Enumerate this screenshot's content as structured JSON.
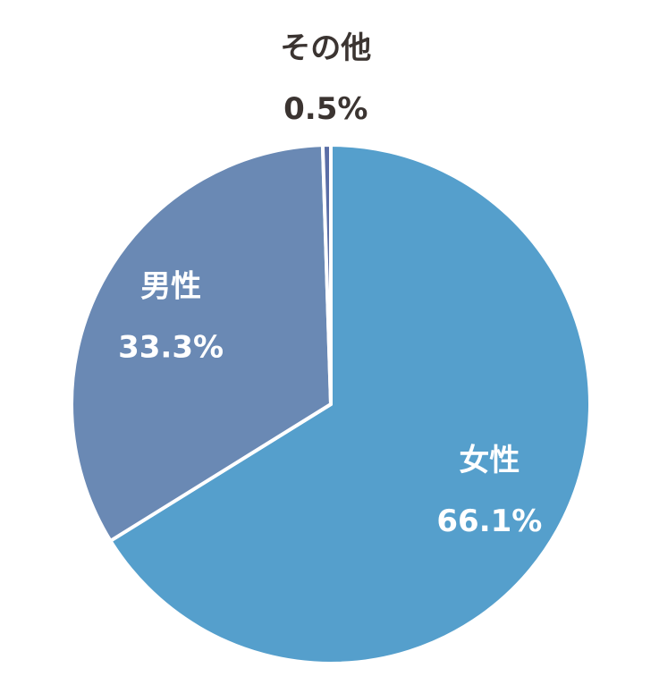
{
  "chart_data": {
    "type": "pie",
    "categories": [
      "女性",
      "男性",
      "その他"
    ],
    "values": [
      66.1,
      33.3,
      0.5
    ],
    "value_labels": [
      "66.1%",
      "33.3%",
      "0.5%"
    ],
    "colors": [
      "#559fcc",
      "#6a89b4",
      "#5a6ea6"
    ]
  }
}
